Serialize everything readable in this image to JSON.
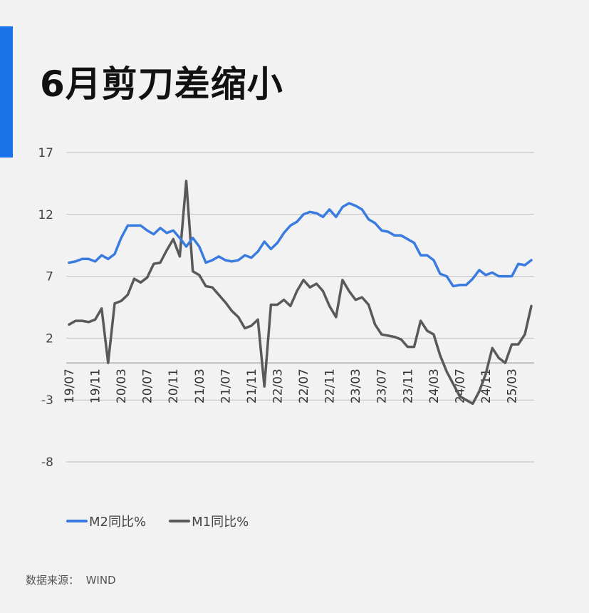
{
  "title": "6月剪刀差缩小",
  "source": {
    "label": "数据来源：",
    "value": "WIND"
  },
  "colors": {
    "accent": "#1a73e8",
    "m2": "#3a7be0",
    "m1": "#595959",
    "grid": "#bfbfbf"
  },
  "chart_data": {
    "type": "line",
    "title": "",
    "xlabel": "",
    "ylabel": "",
    "ylim": [
      -8,
      17
    ],
    "yticks": [
      17,
      12,
      7,
      2,
      -3,
      -8
    ],
    "grid": true,
    "legend_position": "bottom-left",
    "x": [
      "19/07",
      "19/08",
      "19/09",
      "19/10",
      "19/11",
      "19/12",
      "20/01",
      "20/02",
      "20/03",
      "20/04",
      "20/05",
      "20/06",
      "20/07",
      "20/08",
      "20/09",
      "20/10",
      "20/11",
      "20/12",
      "21/01",
      "21/02",
      "21/03",
      "21/04",
      "21/05",
      "21/06",
      "21/07",
      "21/08",
      "21/09",
      "21/10",
      "21/11",
      "21/12",
      "22/01",
      "22/02",
      "22/03",
      "22/04",
      "22/05",
      "22/06",
      "22/07",
      "22/08",
      "22/09",
      "22/10",
      "22/11",
      "22/12",
      "23/01",
      "23/02",
      "23/03",
      "23/04",
      "23/05",
      "23/06",
      "23/07",
      "23/08",
      "23/09",
      "23/10",
      "23/11",
      "23/12",
      "24/01",
      "24/02",
      "24/03",
      "24/04",
      "24/05",
      "24/06",
      "24/07",
      "24/08",
      "24/09",
      "24/10",
      "24/11",
      "24/12",
      "25/01",
      "25/02",
      "25/03",
      "25/04",
      "25/05",
      "25/06"
    ],
    "xtick_labels": [
      "19/07",
      "19/11",
      "20/03",
      "20/07",
      "20/11",
      "21/03",
      "21/07",
      "21/11",
      "22/03",
      "22/07",
      "22/11",
      "23/03",
      "23/07",
      "23/11",
      "24/03",
      "24/07",
      "24/11",
      "25/03"
    ],
    "series": [
      {
        "name": "M2同比%",
        "values": [
          8.1,
          8.2,
          8.4,
          8.4,
          8.2,
          8.7,
          8.4,
          8.8,
          10.1,
          11.1,
          11.1,
          11.1,
          10.7,
          10.4,
          10.9,
          10.5,
          10.7,
          10.1,
          9.4,
          10.1,
          9.4,
          8.1,
          8.3,
          8.6,
          8.3,
          8.2,
          8.3,
          8.7,
          8.5,
          9.0,
          9.8,
          9.2,
          9.7,
          10.5,
          11.1,
          11.4,
          12.0,
          12.2,
          12.1,
          11.8,
          12.4,
          11.8,
          12.6,
          12.9,
          12.7,
          12.4,
          11.6,
          11.3,
          10.7,
          10.6,
          10.3,
          10.3,
          10.0,
          9.7,
          8.7,
          8.7,
          8.3,
          7.2,
          7.0,
          6.2,
          6.3,
          6.3,
          6.8,
          7.5,
          7.1,
          7.3,
          7.0,
          7.0,
          7.0,
          8.0,
          7.9,
          8.3
        ]
      },
      {
        "name": "M1同比%",
        "values": [
          3.1,
          3.4,
          3.4,
          3.3,
          3.5,
          4.4,
          0.0,
          4.8,
          5.0,
          5.5,
          6.8,
          6.5,
          6.9,
          8.0,
          8.1,
          9.1,
          10.0,
          8.6,
          14.7,
          7.4,
          7.1,
          6.2,
          6.1,
          5.5,
          4.9,
          4.2,
          3.7,
          2.8,
          3.0,
          3.5,
          -1.9,
          4.7,
          4.7,
          5.1,
          4.6,
          5.8,
          6.7,
          6.1,
          6.4,
          5.8,
          4.6,
          3.7,
          6.7,
          5.8,
          5.1,
          5.3,
          4.7,
          3.1,
          2.3,
          2.2,
          2.1,
          1.9,
          1.3,
          1.3,
          3.4,
          2.6,
          2.3,
          0.6,
          -0.7,
          -1.7,
          -2.7,
          -3.0,
          -3.3,
          -2.3,
          -0.9,
          1.2,
          0.4,
          0.0,
          1.5,
          1.5,
          2.3,
          4.6
        ]
      }
    ]
  }
}
